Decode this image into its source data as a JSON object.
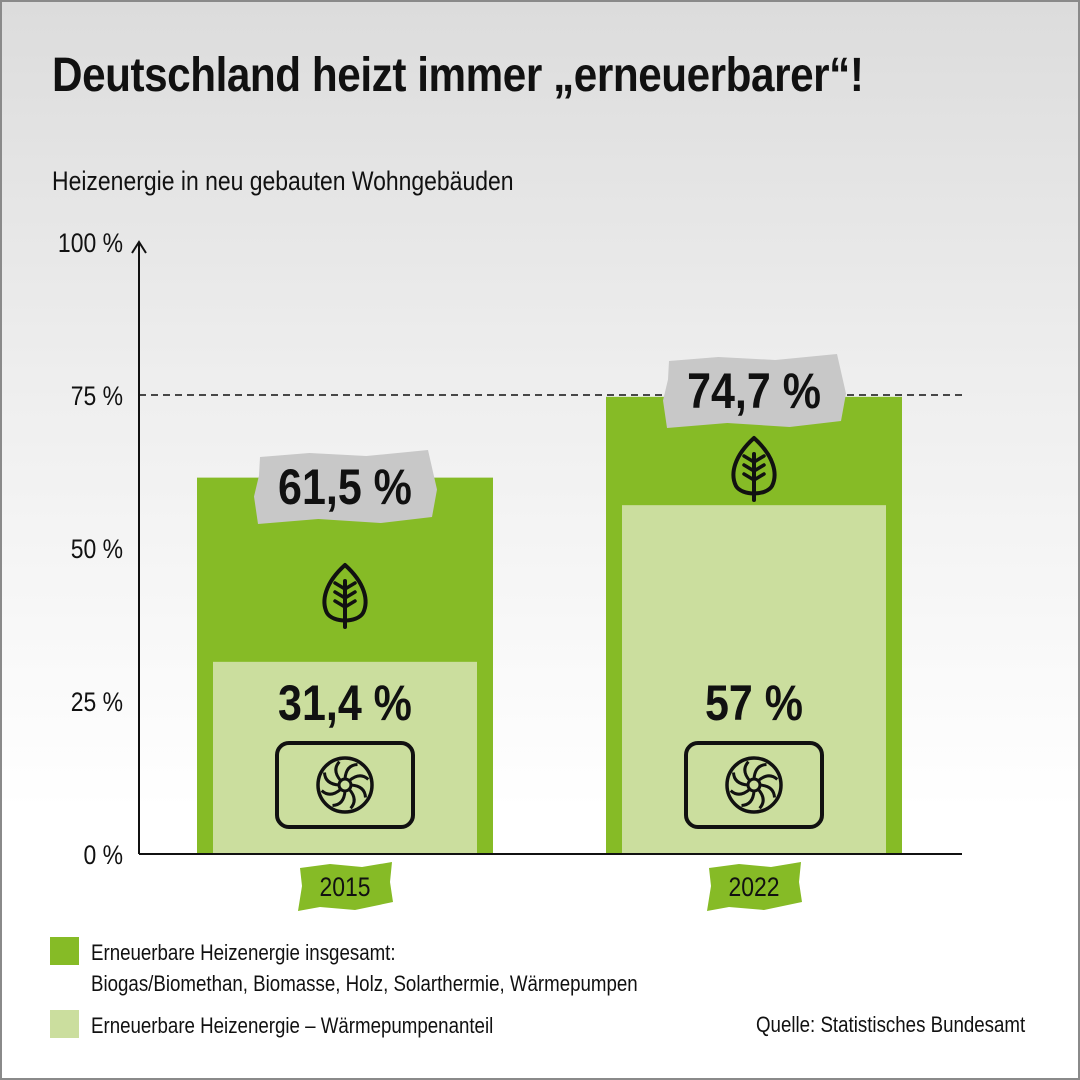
{
  "title": "Deutschland heizt immer „erneuerbarer“!",
  "subtitle": "Heizenergie in neu gebauten Wohngebäuden",
  "source": "Quelle: Statistisches Bundesamt",
  "colors": {
    "renewable_total": "#86bb26",
    "heat_pump_share": "#cbde9e",
    "label_box": "#c8c8c8",
    "year_tag": "#86bb26"
  },
  "legend": [
    {
      "color": "#86bb26",
      "lines": [
        "Erneuerbare Heizenergie insgesamt:",
        "Biogas/Biomethan, Biomasse, Holz, Solarthermie, Wärmepumpen"
      ]
    },
    {
      "color": "#cbde9e",
      "lines": [
        "Erneuerbare Heizenergie – Wärmepumpenanteil"
      ]
    }
  ],
  "icons": [
    "leaf-icon",
    "heat-pump-icon"
  ],
  "chart_data": {
    "type": "bar",
    "categories": [
      "2015",
      "2022"
    ],
    "series": [
      {
        "name": "Erneuerbare Heizenergie insgesamt",
        "values": [
          61.5,
          74.7
        ],
        "labels": [
          "61,5 %",
          "74,7 %"
        ]
      },
      {
        "name": "Erneuerbare Heizenergie – Wärmepumpenanteil",
        "values": [
          31.4,
          57
        ],
        "labels": [
          "31,4 %",
          "57 %"
        ]
      }
    ],
    "ylim": [
      0,
      100
    ],
    "yticks": [
      0,
      25,
      50,
      75,
      100
    ],
    "ytick_labels": [
      "0 %",
      "25 %",
      "50 %",
      "75 %",
      "100 %"
    ],
    "reference_line": 75,
    "grid": false
  }
}
